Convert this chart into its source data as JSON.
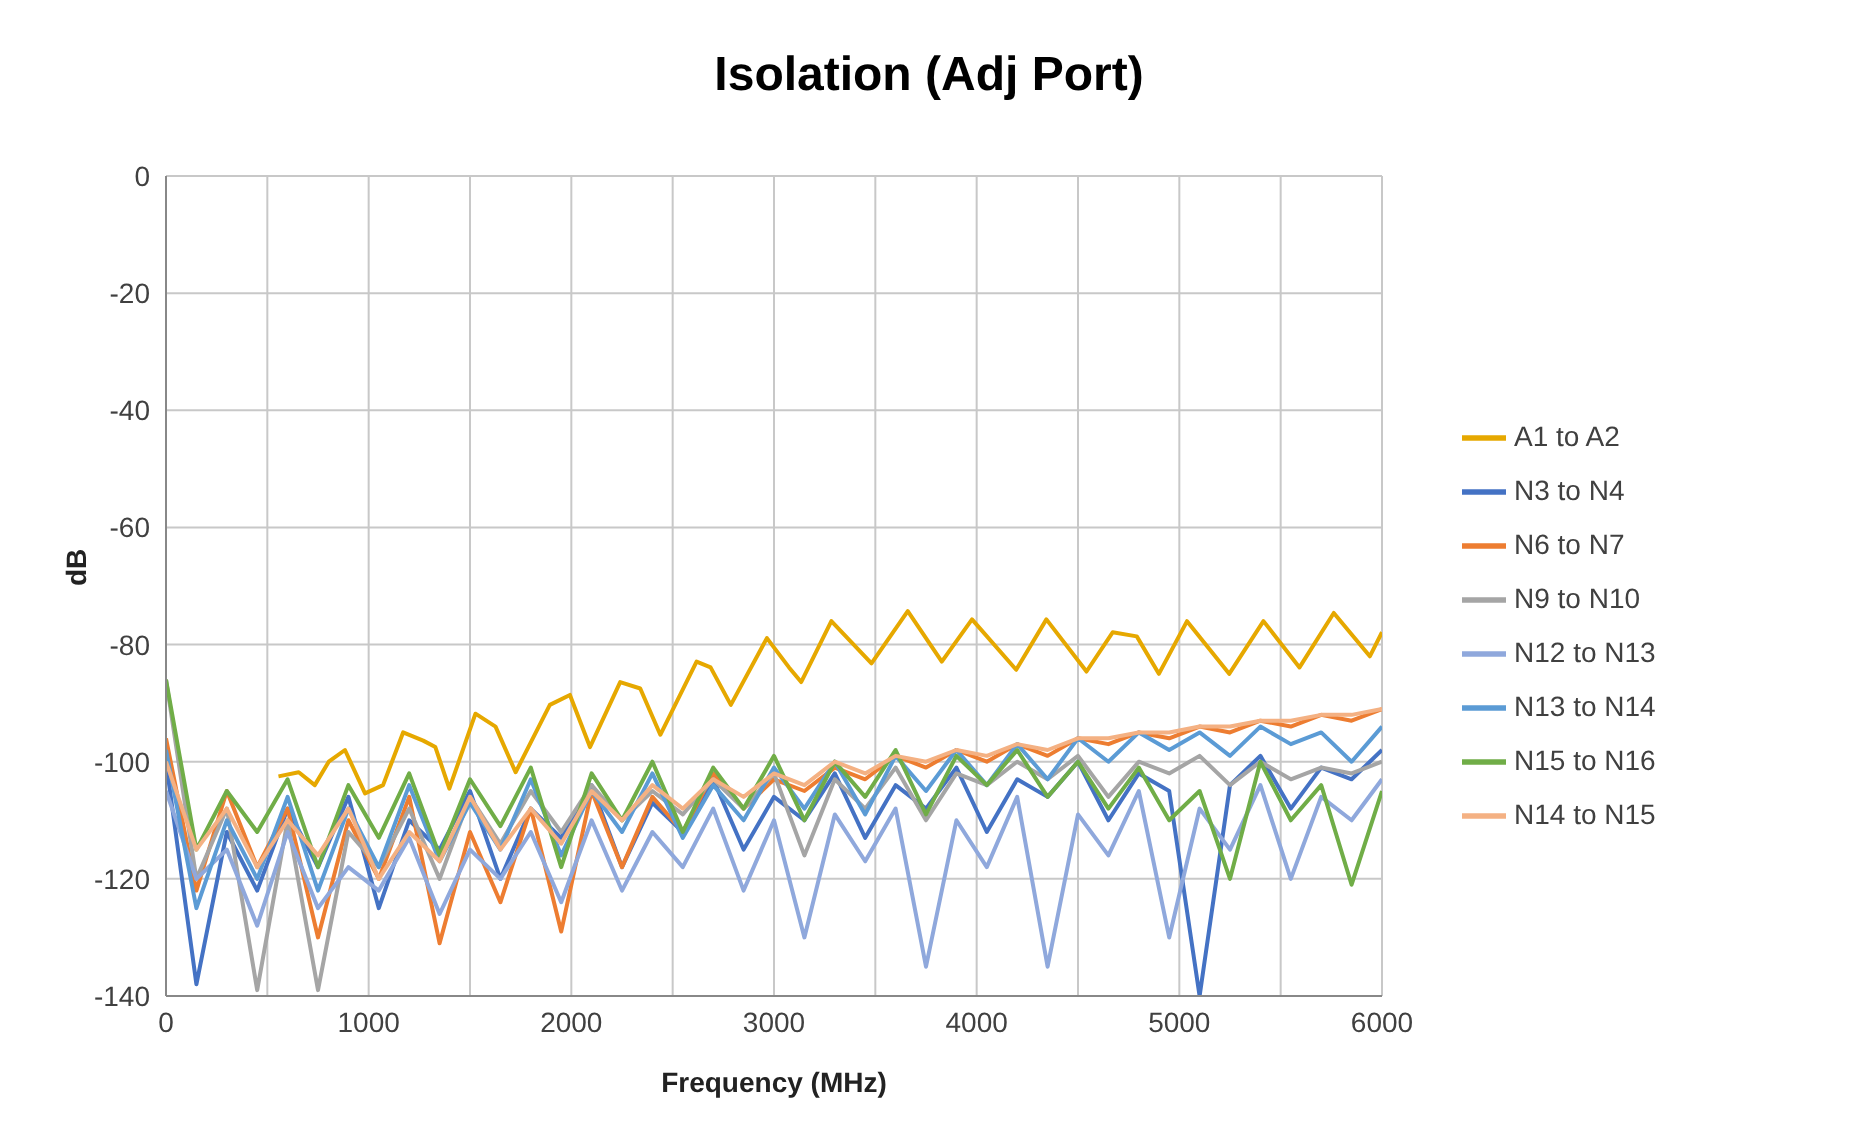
{
  "chart_data": {
    "type": "line",
    "title": "Isolation (Adj Port)",
    "xlabel": "Frequency (MHz)",
    "ylabel": "dB",
    "x": [
      0,
      150,
      300,
      450,
      600,
      750,
      900,
      1050,
      1200,
      1350,
      1500,
      1650,
      1800,
      1950,
      2100,
      2250,
      2400,
      2550,
      2700,
      2850,
      3000,
      3150,
      3300,
      3450,
      3600,
      3750,
      3900,
      4050,
      4200,
      4350,
      4500,
      4650,
      4800,
      4950,
      5100,
      5250,
      5400,
      5550,
      5700,
      5850,
      6000
    ],
    "series": [
      {
        "name": "A1 to A2",
        "color": "#e6a800",
        "x": [
          555,
          655,
          734,
          803,
          883,
          982,
          1071,
          1170,
          1269,
          1329,
          1398,
          1527,
          1626,
          1725,
          1894,
          1993,
          2092,
          2241,
          2340,
          2439,
          2618,
          2687,
          2787,
          2965,
          3074,
          3134,
          3283,
          3481,
          3660,
          3828,
          3977,
          4195,
          4344,
          4542,
          4671,
          4790,
          4899,
          5038,
          5246,
          5415,
          5593,
          5762,
          5940,
          6000
        ],
        "values": [
          -102.5,
          -101.8,
          -104,
          -100,
          -98,
          -105.4,
          -104,
          -95,
          -96.4,
          -97.5,
          -104.6,
          -91.8,
          -94,
          -101.8,
          -90.3,
          -88.6,
          -97.5,
          -86.4,
          -87.5,
          -95.4,
          -82.9,
          -83.9,
          -90.3,
          -78.9,
          -83.9,
          -86.4,
          -76,
          -83.2,
          -74.3,
          -82.9,
          -75.7,
          -84.3,
          -75.7,
          -84.6,
          -77.9,
          -78.6,
          -85,
          -76,
          -85,
          -76,
          -83.9,
          -74.6,
          -82,
          -77.9
        ]
      },
      {
        "name": "N3 to N4",
        "color": "#4472c4",
        "values": [
          -100,
          -138,
          -112,
          -122,
          -108,
          -118,
          -106,
          -125,
          -110,
          -115,
          -105,
          -120,
          -108,
          -113,
          -104,
          -118,
          -107,
          -112,
          -103,
          -115,
          -106,
          -110,
          -102,
          -113,
          -104,
          -108,
          -101,
          -112,
          -103,
          -106,
          -100,
          -110,
          -102,
          -105,
          -140,
          -104,
          -99,
          -108,
          -101,
          -103,
          -98
        ]
      },
      {
        "name": "N6 to N7",
        "color": "#ed7d31",
        "values": [
          -96,
          -122,
          -105,
          -118,
          -108,
          -130,
          -110,
          -120,
          -106,
          -131,
          -112,
          -124,
          -108,
          -129,
          -105,
          -118,
          -106,
          -112,
          -102,
          -108,
          -103,
          -105,
          -101,
          -103,
          -99,
          -101,
          -98,
          -100,
          -97,
          -99,
          -96,
          -97,
          -95,
          -96,
          -94,
          -95,
          -93,
          -94,
          -92,
          -93,
          -91
        ]
      },
      {
        "name": "N9 to N10",
        "color": "#a5a5a5",
        "values": [
          -86,
          -120,
          -108,
          -139,
          -110,
          -139,
          -112,
          -118,
          -108,
          -120,
          -106,
          -114,
          -105,
          -112,
          -104,
          -110,
          -105,
          -109,
          -103,
          -108,
          -102,
          -116,
          -103,
          -108,
          -101,
          -110,
          -102,
          -104,
          -100,
          -103,
          -99,
          -106,
          -100,
          -102,
          -99,
          -104,
          -100,
          -103,
          -101,
          -102,
          -100
        ]
      },
      {
        "name": "N12 to N13",
        "color": "#8fa8dc",
        "values": [
          -105,
          -120,
          -115,
          -128,
          -112,
          -125,
          -118,
          -122,
          -113,
          -126,
          -115,
          -120,
          -112,
          -124,
          -110,
          -122,
          -112,
          -118,
          -108,
          -122,
          -110,
          -130,
          -109,
          -117,
          -108,
          -135,
          -110,
          -118,
          -106,
          -135,
          -109,
          -116,
          -105,
          -130,
          -108,
          -115,
          -104,
          -120,
          -106,
          -110,
          -103
        ]
      },
      {
        "name": "N13 to N14",
        "color": "#5b9bd5",
        "values": [
          -98,
          -125,
          -110,
          -120,
          -106,
          -122,
          -108,
          -118,
          -104,
          -117,
          -107,
          -115,
          -103,
          -116,
          -105,
          -112,
          -102,
          -113,
          -104,
          -110,
          -101,
          -108,
          -100,
          -109,
          -99,
          -105,
          -98,
          -104,
          -97,
          -103,
          -96,
          -100,
          -95,
          -98,
          -95,
          -99,
          -94,
          -97,
          -95,
          -100,
          -94
        ]
      },
      {
        "name": "N15 to N16",
        "color": "#70ad47",
        "values": [
          -86,
          -115,
          -105,
          -112,
          -103,
          -118,
          -104,
          -113,
          -102,
          -116,
          -103,
          -111,
          -101,
          -118,
          -102,
          -110,
          -100,
          -112,
          -101,
          -108,
          -99,
          -110,
          -100,
          -106,
          -98,
          -109,
          -99,
          -104,
          -98,
          -106,
          -100,
          -108,
          -101,
          -110,
          -105,
          -120,
          -100,
          -110,
          -104,
          -121,
          -105
        ]
      },
      {
        "name": "N14 to N15",
        "color": "#f4b183",
        "values": [
          -100,
          -115,
          -108,
          -118,
          -110,
          -116,
          -108,
          -120,
          -112,
          -117,
          -106,
          -115,
          -108,
          -114,
          -105,
          -110,
          -104,
          -108,
          -103,
          -106,
          -102,
          -104,
          -100,
          -102,
          -99,
          -100,
          -98,
          -99,
          -97,
          -98,
          -96,
          -96,
          -95,
          -95,
          -94,
          -94,
          -93,
          -93,
          -92,
          -92,
          -91
        ]
      }
    ],
    "xlim": [
      0,
      6000
    ],
    "xticks": [
      0,
      {
        "value": 500,
        "label": null
      },
      1000,
      {
        "value": 1500,
        "label": null
      },
      2000,
      {
        "value": 2500,
        "label": null
      },
      3000,
      {
        "value": 3500,
        "label": null
      },
      4000,
      {
        "value": 4500,
        "label": null
      },
      5000,
      {
        "value": 5500,
        "label": null
      },
      6000
    ],
    "ylim": [
      -140,
      0
    ],
    "yticks": [
      -140,
      -120,
      -100,
      -80,
      -60,
      -40,
      -20,
      0
    ],
    "grid": true,
    "legend": "right",
    "marker": "none",
    "line_style": "solid"
  }
}
